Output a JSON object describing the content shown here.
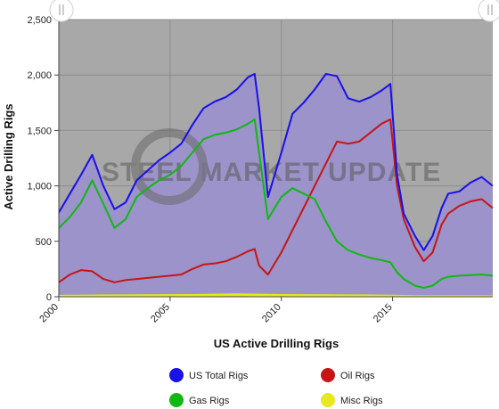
{
  "chart_data": {
    "type": "area",
    "title": "",
    "xlabel": "US Active Drilling Rigs",
    "ylabel": "Active Drilling Rigs",
    "xlim": [
      2000,
      2019.5
    ],
    "ylim": [
      0,
      2500
    ],
    "x_ticks": [
      "2000",
      "2005",
      "2010",
      "2015"
    ],
    "y_ticks": [
      "0",
      "500",
      "1,000",
      "1,500",
      "2,000",
      "2,500"
    ],
    "grid": true,
    "legend_position": "bottom",
    "watermark": "STEEL MARKET UPDATE",
    "background_color": "#a8a8a8",
    "area_fill_color": "#9b93c9",
    "series": [
      {
        "name": "US Total Rigs",
        "color": "#1a10e8",
        "x": [
          2000,
          2000.5,
          2001,
          2001.5,
          2002,
          2002.5,
          2003,
          2003.5,
          2004,
          2004.5,
          2005,
          2005.5,
          2006,
          2006.5,
          2007,
          2007.5,
          2008,
          2008.5,
          2008.8,
          2009,
          2009.4,
          2010,
          2010.5,
          2011,
          2011.5,
          2012,
          2012.5,
          2013,
          2013.5,
          2014,
          2014.5,
          2014.9,
          2015.2,
          2015.5,
          2016,
          2016.4,
          2016.8,
          2017.2,
          2017.5,
          2018,
          2018.5,
          2019,
          2019.5
        ],
        "values": [
          760,
          930,
          1100,
          1280,
          1000,
          790,
          850,
          1050,
          1140,
          1230,
          1300,
          1380,
          1550,
          1700,
          1760,
          1800,
          1870,
          1980,
          2010,
          1700,
          900,
          1300,
          1650,
          1750,
          1870,
          2010,
          1990,
          1790,
          1760,
          1800,
          1860,
          1920,
          1100,
          750,
          550,
          420,
          550,
          800,
          930,
          950,
          1030,
          1080,
          1000
        ]
      },
      {
        "name": "Oil Rigs",
        "color": "#c81414",
        "x": [
          2000,
          2000.5,
          2001,
          2001.5,
          2002,
          2002.5,
          2003,
          2003.5,
          2004,
          2004.5,
          2005,
          2005.5,
          2006,
          2006.5,
          2007,
          2007.5,
          2008,
          2008.5,
          2008.8,
          2009,
          2009.4,
          2010,
          2010.5,
          2011,
          2011.5,
          2012,
          2012.5,
          2013,
          2013.5,
          2014,
          2014.5,
          2014.9,
          2015.2,
          2015.5,
          2016,
          2016.4,
          2016.8,
          2017.2,
          2017.5,
          2018,
          2018.5,
          2019,
          2019.5
        ],
        "values": [
          130,
          200,
          240,
          230,
          160,
          130,
          150,
          160,
          170,
          180,
          190,
          200,
          250,
          290,
          300,
          320,
          360,
          410,
          430,
          280,
          200,
          400,
          600,
          800,
          1000,
          1200,
          1400,
          1380,
          1400,
          1480,
          1560,
          1600,
          1000,
          700,
          450,
          320,
          400,
          650,
          750,
          820,
          860,
          880,
          800
        ]
      },
      {
        "name": "Gas Rigs",
        "color": "#10b810",
        "x": [
          2000,
          2000.5,
          2001,
          2001.5,
          2002,
          2002.5,
          2003,
          2003.5,
          2004,
          2004.5,
          2005,
          2005.5,
          2006,
          2006.5,
          2007,
          2007.5,
          2008,
          2008.5,
          2008.8,
          2009,
          2009.4,
          2010,
          2010.5,
          2011,
          2011.5,
          2012,
          2012.5,
          2013,
          2013.5,
          2014,
          2014.5,
          2014.9,
          2015.2,
          2015.5,
          2016,
          2016.4,
          2016.8,
          2017.2,
          2017.5,
          2018,
          2018.5,
          2019,
          2019.5
        ],
        "values": [
          620,
          720,
          850,
          1050,
          840,
          620,
          700,
          900,
          980,
          1050,
          1100,
          1180,
          1300,
          1420,
          1460,
          1480,
          1510,
          1560,
          1600,
          1300,
          700,
          900,
          980,
          930,
          880,
          680,
          500,
          420,
          380,
          350,
          330,
          310,
          220,
          160,
          100,
          80,
          100,
          160,
          180,
          190,
          195,
          200,
          190
        ]
      },
      {
        "name": "Misc Rigs",
        "color": "#e8e820",
        "x": [
          2000,
          2002,
          2004,
          2006,
          2008,
          2009,
          2010,
          2012,
          2014,
          2015,
          2016,
          2017,
          2018,
          2019,
          2019.5
        ],
        "values": [
          5,
          8,
          10,
          12,
          18,
          15,
          12,
          10,
          8,
          6,
          2,
          1,
          1,
          1,
          1
        ]
      }
    ]
  }
}
